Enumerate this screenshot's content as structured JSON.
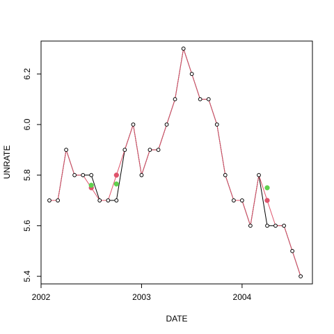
{
  "chart_data": {
    "type": "line",
    "title": "",
    "xlabel": "DATE",
    "ylabel": "UNRATE",
    "xlim": [
      2002.0,
      2004.7
    ],
    "ylim": [
      5.37,
      6.33
    ],
    "x_ticks": [
      2002,
      2003,
      2004
    ],
    "x_tick_labels": [
      "2002",
      "2003",
      "2004"
    ],
    "y_ticks": [
      5.4,
      5.6,
      5.8,
      6.0,
      6.2
    ],
    "y_tick_labels": [
      "5.4",
      "5.6",
      "5.8",
      "6.0",
      "6.2"
    ],
    "grid": false,
    "legend": "none",
    "series": [
      {
        "style": "black points with thin connecting lines",
        "color": "#000000",
        "x": [
          2002.083,
          2002.167,
          2002.25,
          2002.333,
          2002.417,
          2002.5,
          2002.583,
          2002.667,
          2002.75,
          2002.833,
          2002.917,
          2003.0,
          2003.083,
          2003.167,
          2003.25,
          2003.333,
          2003.417,
          2003.5,
          2003.583,
          2003.667,
          2003.75,
          2003.833,
          2003.917,
          2004.0,
          2004.083,
          2004.167,
          2004.25,
          2004.333,
          2004.417,
          2004.5,
          2004.583
        ],
        "values": [
          5.7,
          5.7,
          5.9,
          5.8,
          5.8,
          5.8,
          5.7,
          5.7,
          5.7,
          5.9,
          6.0,
          5.8,
          5.9,
          5.9,
          6.0,
          6.1,
          6.3,
          6.2,
          6.1,
          6.1,
          6.0,
          5.8,
          5.7,
          5.7,
          5.6,
          5.8,
          5.6,
          5.6,
          5.6,
          5.5,
          5.4
        ]
      },
      {
        "style": "red line with filled points",
        "color": "#df536b",
        "x": [
          2002.083,
          2002.167,
          2002.25,
          2002.333,
          2002.417,
          2002.5,
          2002.583,
          2002.667,
          2002.75,
          2002.833,
          2002.917,
          2003.0,
          2003.083,
          2003.167,
          2003.25,
          2003.333,
          2003.417,
          2003.5,
          2003.583,
          2003.667,
          2003.75,
          2003.833,
          2003.917,
          2004.0,
          2004.083,
          2004.167,
          2004.25,
          2004.333,
          2004.417,
          2004.5,
          2004.583
        ],
        "values": [
          5.7,
          5.7,
          5.9,
          5.8,
          5.8,
          5.75,
          5.7,
          5.7,
          5.8,
          5.9,
          6.0,
          5.8,
          5.9,
          5.9,
          6.0,
          6.1,
          6.3,
          6.2,
          6.1,
          6.1,
          6.0,
          5.8,
          5.7,
          5.7,
          5.6,
          5.8,
          5.7,
          5.6,
          5.6,
          5.5,
          5.4
        ],
        "marker_indices": [
          5,
          8,
          26
        ]
      },
      {
        "style": "green filled points",
        "color": "#61d04f",
        "x": [
          2002.5,
          2002.75,
          2004.25
        ],
        "values": [
          5.76,
          5.765,
          5.75
        ]
      }
    ]
  }
}
